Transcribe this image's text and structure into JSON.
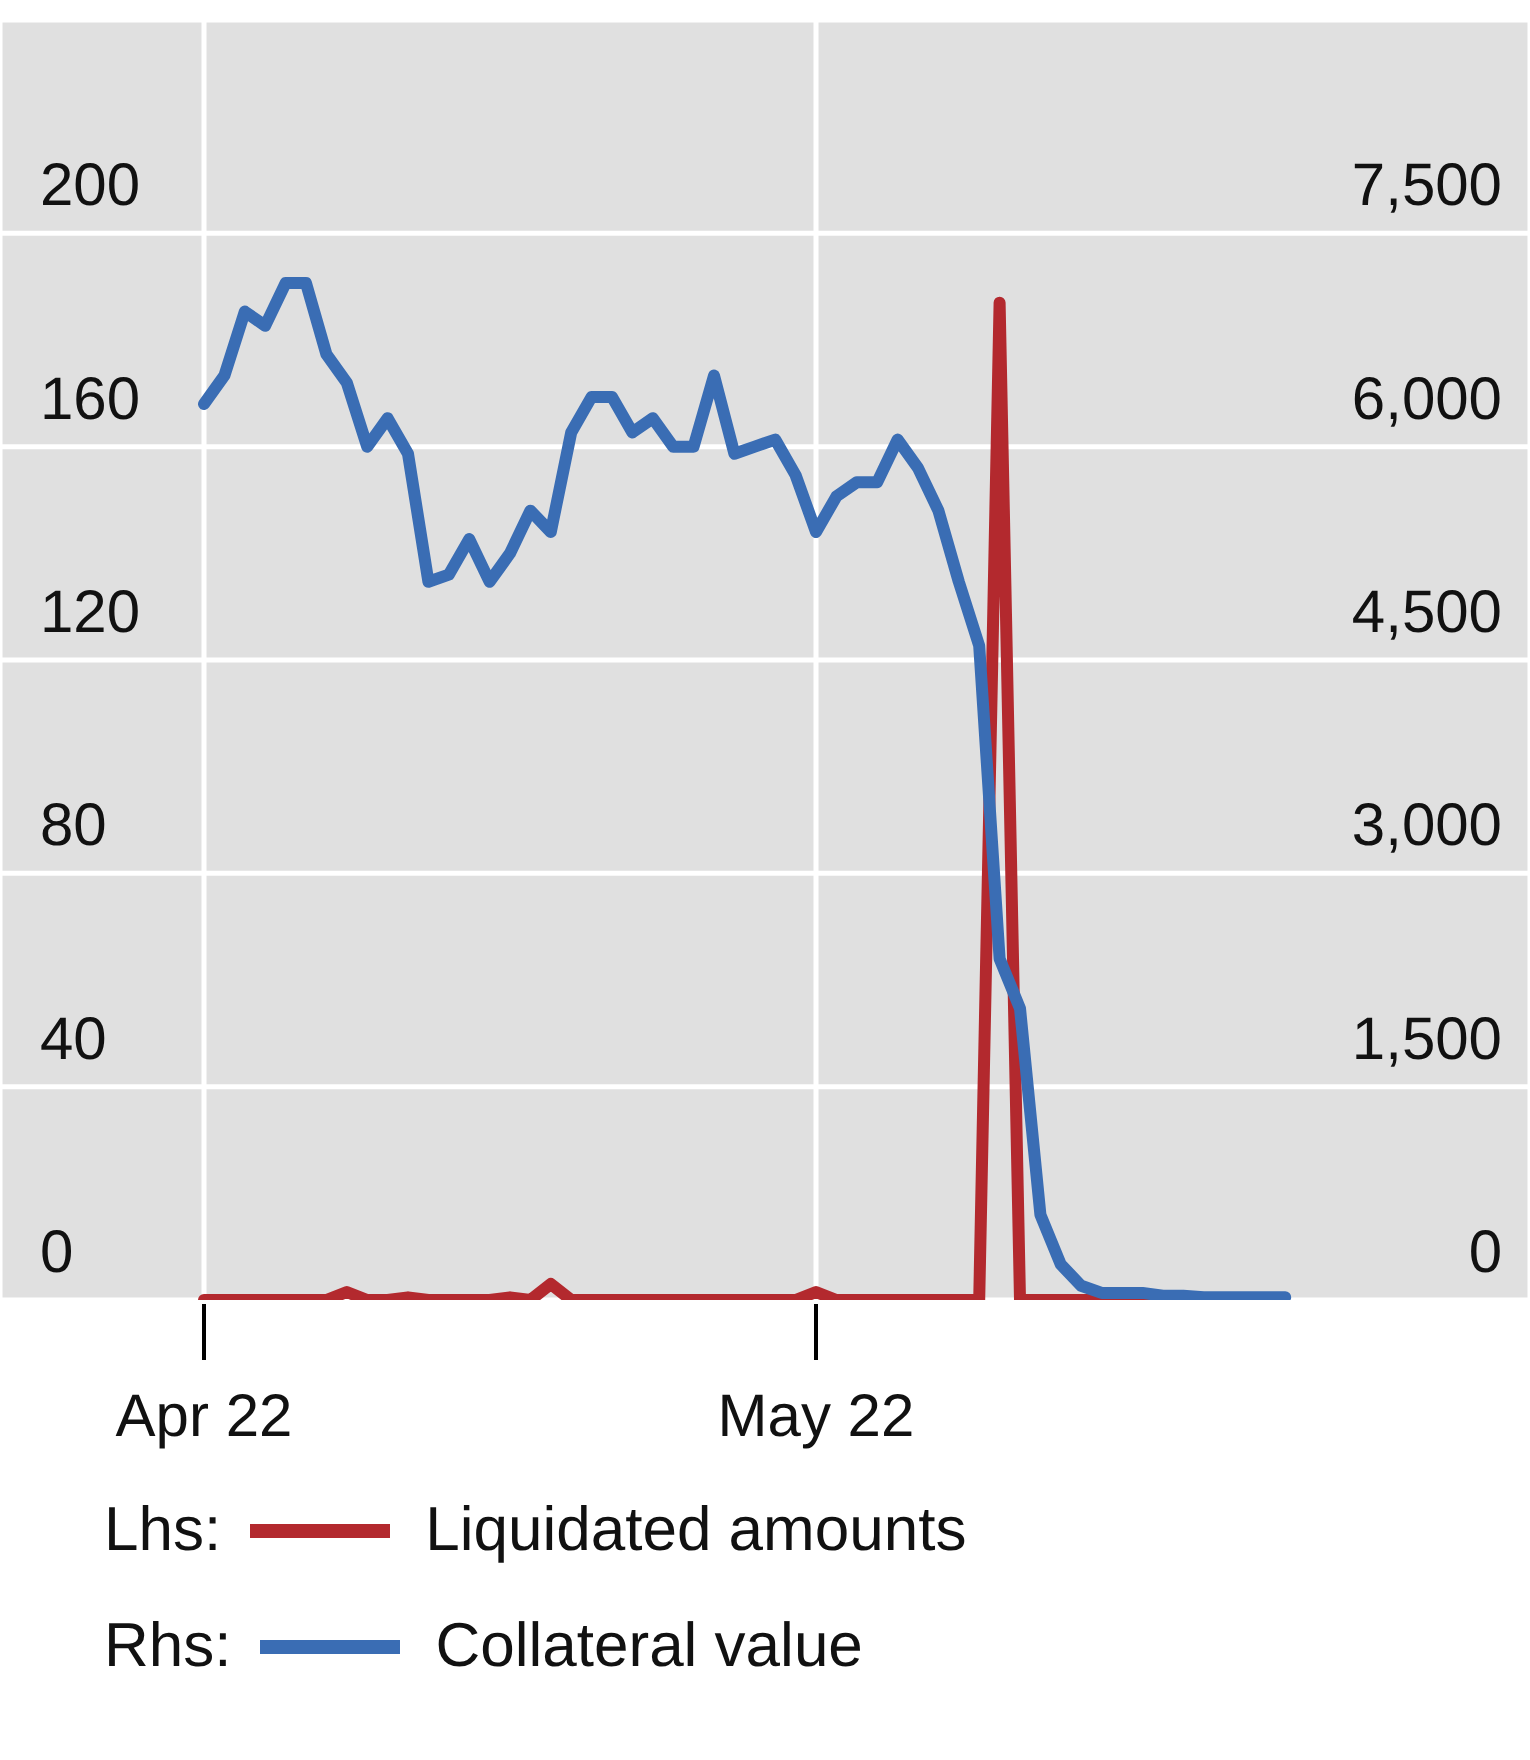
{
  "chart_data": {
    "type": "line",
    "x": [
      "2022-04-01",
      "2022-04-02",
      "2022-04-03",
      "2022-04-04",
      "2022-04-05",
      "2022-04-06",
      "2022-04-07",
      "2022-04-08",
      "2022-04-09",
      "2022-04-10",
      "2022-04-11",
      "2022-04-12",
      "2022-04-13",
      "2022-04-14",
      "2022-04-15",
      "2022-04-16",
      "2022-04-17",
      "2022-04-18",
      "2022-04-19",
      "2022-04-20",
      "2022-04-21",
      "2022-04-22",
      "2022-04-23",
      "2022-04-24",
      "2022-04-25",
      "2022-04-26",
      "2022-04-27",
      "2022-04-28",
      "2022-04-29",
      "2022-04-30",
      "2022-05-01",
      "2022-05-02",
      "2022-05-03",
      "2022-05-04",
      "2022-05-05",
      "2022-05-06",
      "2022-05-07",
      "2022-05-08",
      "2022-05-09",
      "2022-05-10",
      "2022-05-11",
      "2022-05-12",
      "2022-05-13",
      "2022-05-14",
      "2022-05-15",
      "2022-05-16",
      "2022-05-17",
      "2022-05-18",
      "2022-05-19",
      "2022-05-20",
      "2022-05-21",
      "2022-05-22",
      "2022-05-23",
      "2022-05-24"
    ],
    "series": [
      {
        "name": "Liquidated amounts",
        "color": "#b3292e",
        "values": [
          0,
          0,
          0,
          0,
          0,
          0,
          0,
          1.5,
          0,
          0,
          0.5,
          0,
          0,
          0,
          0,
          0.5,
          0,
          3,
          0,
          0,
          0,
          0,
          0,
          0,
          0,
          0,
          0,
          0,
          0,
          0,
          1.5,
          0,
          0,
          0,
          0,
          0,
          0,
          0,
          0,
          187,
          0,
          0,
          0,
          0,
          0,
          0,
          0,
          0,
          0,
          null,
          null,
          null,
          null,
          null
        ]
      },
      {
        "name": "Collateral value",
        "color": "#3a6db4",
        "axis": "y2",
        "values": [
          6300,
          6500,
          6950,
          6850,
          7150,
          7150,
          6650,
          6450,
          6000,
          6200,
          5950,
          5050,
          5100,
          5350,
          5050,
          5250,
          5550,
          5400,
          6100,
          6350,
          6350,
          6100,
          6200,
          6000,
          6000,
          6500,
          5950,
          6000,
          6050,
          5800,
          5400,
          5650,
          5750,
          5750,
          6050,
          5850,
          5550,
          5050,
          4600,
          2400,
          2050,
          600,
          250,
          100,
          50,
          50,
          50,
          30,
          30,
          20,
          20,
          20,
          20,
          20
        ]
      }
    ],
    "annotations": [
      "Lhs:",
      "Rhs:"
    ],
    "xlim": [
      "2022-03-22",
      "2022-06-05"
    ],
    "xticks": [
      {
        "value": "2022-04",
        "label": "Apr 22"
      },
      {
        "value": "2022-05",
        "label": "May 22"
      }
    ],
    "ylim": [
      0,
      240
    ],
    "yticks": [
      0,
      40,
      80,
      120,
      160,
      200
    ],
    "y2lim": [
      0,
      9000
    ],
    "y2ticks": [
      {
        "value": 0,
        "label": "0"
      },
      {
        "value": 1500,
        "label": "1,500"
      },
      {
        "value": 3000,
        "label": "3,000"
      },
      {
        "value": 4500,
        "label": "4,500"
      },
      {
        "value": 6000,
        "label": "6,000"
      },
      {
        "value": 7500,
        "label": "7,500"
      }
    ],
    "grid": true,
    "legend": "bottom",
    "line_style": "solid"
  }
}
